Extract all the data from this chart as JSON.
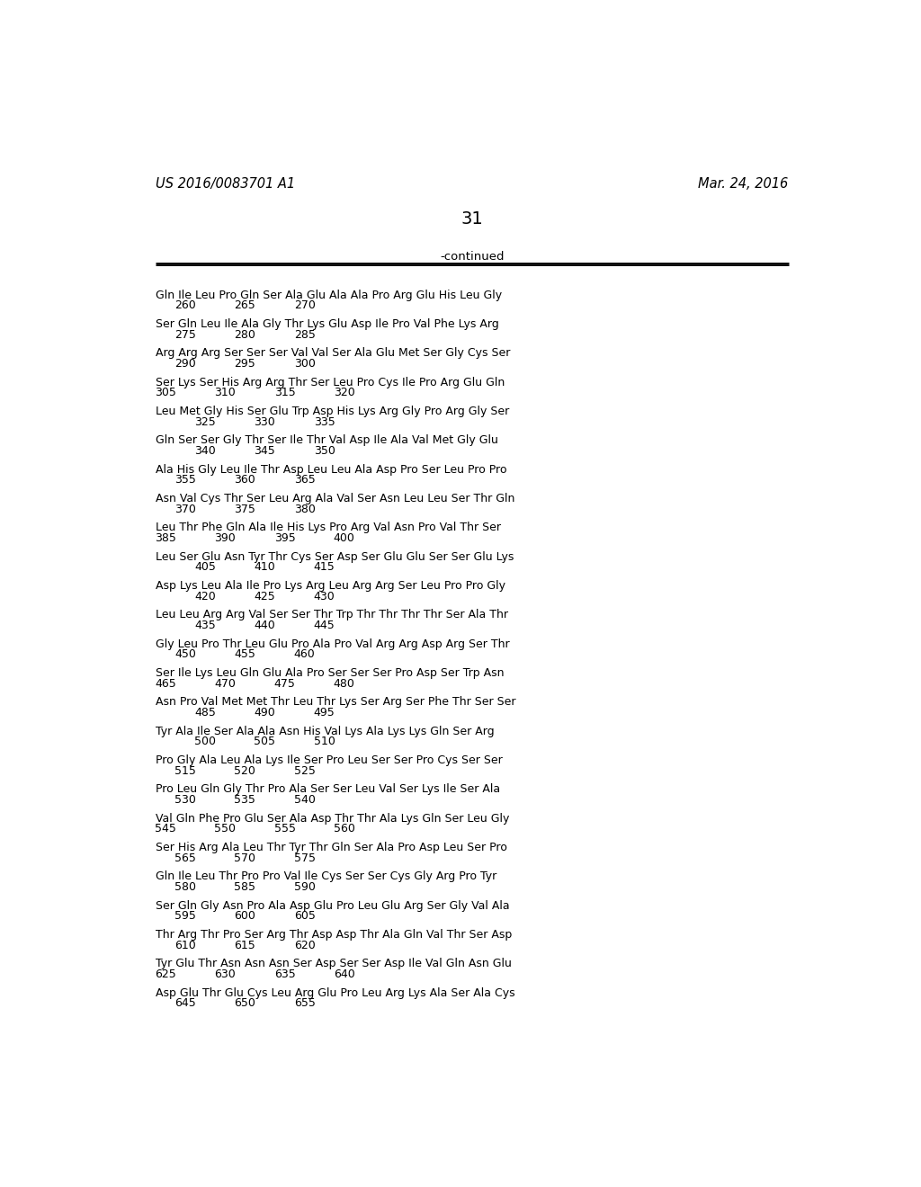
{
  "header_left": "US 2016/0083701 A1",
  "header_right": "Mar. 24, 2016",
  "page_number": "31",
  "continued_label": "-continued",
  "background_color": "#ffffff",
  "text_color": "#000000",
  "lines": [
    {
      "aa": "Gln Ile Leu Pro Gln Ser Ala Glu Ala Ala Pro Arg Glu His Leu Gly",
      "nums": [
        [
          "260",
          1
        ],
        [
          "265",
          4
        ],
        [
          "270",
          7
        ]
      ]
    },
    {
      "aa": "Ser Gln Leu Ile Ala Gly Thr Lys Glu Asp Ile Pro Val Phe Lys Arg",
      "nums": [
        [
          "275",
          1
        ],
        [
          "280",
          4
        ],
        [
          "285",
          7
        ]
      ]
    },
    {
      "aa": "Arg Arg Arg Ser Ser Ser Val Val Ser Ala Glu Met Ser Gly Cys Ser",
      "nums": [
        [
          "290",
          1
        ],
        [
          "295",
          4
        ],
        [
          "300",
          7
        ]
      ]
    },
    {
      "aa": "Ser Lys Ser His Arg Arg Thr Ser Leu Pro Cys Ile Pro Arg Glu Gln",
      "nums": [
        [
          "305",
          0
        ],
        [
          "310",
          3
        ],
        [
          "315",
          6
        ],
        [
          "320",
          9
        ]
      ]
    },
    {
      "aa": "Leu Met Gly His Ser Glu Trp Asp His Lys Arg Gly Pro Arg Gly Ser",
      "nums": [
        [
          "325",
          2
        ],
        [
          "330",
          5
        ],
        [
          "335",
          8
        ]
      ]
    },
    {
      "aa": "Gln Ser Ser Gly Thr Ser Ile Thr Val Asp Ile Ala Val Met Gly Glu",
      "nums": [
        [
          "340",
          2
        ],
        [
          "345",
          5
        ],
        [
          "350",
          8
        ]
      ]
    },
    {
      "aa": "Ala His Gly Leu Ile Thr Asp Leu Leu Ala Asp Pro Ser Leu Pro Pro",
      "nums": [
        [
          "355",
          1
        ],
        [
          "360",
          4
        ],
        [
          "365",
          7
        ]
      ]
    },
    {
      "aa": "Asn Val Cys Thr Ser Leu Arg Ala Val Ser Asn Leu Leu Ser Thr Gln",
      "nums": [
        [
          "370",
          1
        ],
        [
          "375",
          4
        ],
        [
          "380",
          7
        ]
      ]
    },
    {
      "aa": "Leu Thr Phe Gln Ala Ile His Lys Pro Arg Val Asn Pro Val Thr Ser",
      "nums": [
        [
          "385",
          0
        ],
        [
          "390",
          3
        ],
        [
          "395",
          6
        ],
        [
          "400",
          9
        ]
      ]
    },
    {
      "aa": "Leu Ser Glu Asn Tyr Thr Cys Ser Asp Ser Glu Glu Ser Ser Glu Lys",
      "nums": [
        [
          "405",
          2
        ],
        [
          "410",
          5
        ],
        [
          "415",
          8
        ]
      ]
    },
    {
      "aa": "Asp Lys Leu Ala Ile Pro Lys Arg Leu Arg Arg Ser Leu Pro Pro Gly",
      "nums": [
        [
          "420",
          2
        ],
        [
          "425",
          5
        ],
        [
          "430",
          8
        ]
      ]
    },
    {
      "aa": "Leu Leu Arg Arg Val Ser Ser Thr Trp Thr Thr Thr Thr Ser Ala Thr",
      "nums": [
        [
          "435",
          2
        ],
        [
          "440",
          5
        ],
        [
          "445",
          8
        ]
      ]
    },
    {
      "aa": "Gly Leu Pro Thr Leu Glu Pro Ala Pro Val Arg Arg Asp Arg Ser Thr",
      "nums": [
        [
          "450",
          1
        ],
        [
          "455",
          4
        ],
        [
          "460",
          7
        ]
      ]
    },
    {
      "aa": "Ser Ile Lys Leu Gln Glu Ala Pro Ser Ser Ser Pro Asp Ser Trp Asn",
      "nums": [
        [
          "465",
          0
        ],
        [
          "470",
          3
        ],
        [
          "475",
          6
        ],
        [
          "480",
          9
        ]
      ]
    },
    {
      "aa": "Asn Pro Val Met Met Thr Leu Thr Lys Ser Arg Ser Phe Thr Ser Ser",
      "nums": [
        [
          "485",
          2
        ],
        [
          "490",
          5
        ],
        [
          "495",
          8
        ]
      ]
    },
    {
      "aa": "Tyr Ala Ile Ser Ala Ala Asn His Val Lys Ala Lys Lys Gln Ser Arg",
      "nums": [
        [
          "500",
          2
        ],
        [
          "505",
          5
        ],
        [
          "510",
          8
        ]
      ]
    },
    {
      "aa": "Pro Gly Ala Leu Ala Lys Ile Ser Pro Leu Ser Ser Pro Cys Ser Ser",
      "nums": [
        [
          "515",
          1
        ],
        [
          "520",
          4
        ],
        [
          "525",
          7
        ]
      ]
    },
    {
      "aa": "Pro Leu Gln Gly Thr Pro Ala Ser Ser Leu Val Ser Lys Ile Ser Ala",
      "nums": [
        [
          "530",
          1
        ],
        [
          "535",
          4
        ],
        [
          "540",
          7
        ]
      ]
    },
    {
      "aa": "Val Gln Phe Pro Glu Ser Ala Asp Thr Thr Ala Lys Gln Ser Leu Gly",
      "nums": [
        [
          "545",
          0
        ],
        [
          "550",
          3
        ],
        [
          "555",
          6
        ],
        [
          "560",
          9
        ]
      ]
    },
    {
      "aa": "Ser His Arg Ala Leu Thr Tyr Thr Gln Ser Ala Pro Asp Leu Ser Pro",
      "nums": [
        [
          "565",
          1
        ],
        [
          "570",
          4
        ],
        [
          "575",
          7
        ]
      ]
    },
    {
      "aa": "Gln Ile Leu Thr Pro Pro Val Ile Cys Ser Ser Cys Gly Arg Pro Tyr",
      "nums": [
        [
          "580",
          1
        ],
        [
          "585",
          4
        ],
        [
          "590",
          7
        ]
      ]
    },
    {
      "aa": "Ser Gln Gly Asn Pro Ala Asp Glu Pro Leu Glu Arg Ser Gly Val Ala",
      "nums": [
        [
          "595",
          1
        ],
        [
          "600",
          4
        ],
        [
          "605",
          7
        ]
      ]
    },
    {
      "aa": "Thr Arg Thr Pro Ser Arg Thr Asp Asp Thr Ala Gln Val Thr Ser Asp",
      "nums": [
        [
          "610",
          1
        ],
        [
          "615",
          4
        ],
        [
          "620",
          7
        ]
      ]
    },
    {
      "aa": "Tyr Glu Thr Asn Asn Asn Ser Asp Ser Ser Asp Ile Val Gln Asn Glu",
      "nums": [
        [
          "625",
          0
        ],
        [
          "630",
          3
        ],
        [
          "635",
          6
        ],
        [
          "640",
          9
        ]
      ]
    },
    {
      "aa": "Asp Glu Thr Glu Cys Leu Arg Glu Pro Leu Arg Lys Ala Ser Ala Cys",
      "nums": [
        [
          "645",
          1
        ],
        [
          "650",
          4
        ],
        [
          "655",
          7
        ]
      ]
    }
  ]
}
